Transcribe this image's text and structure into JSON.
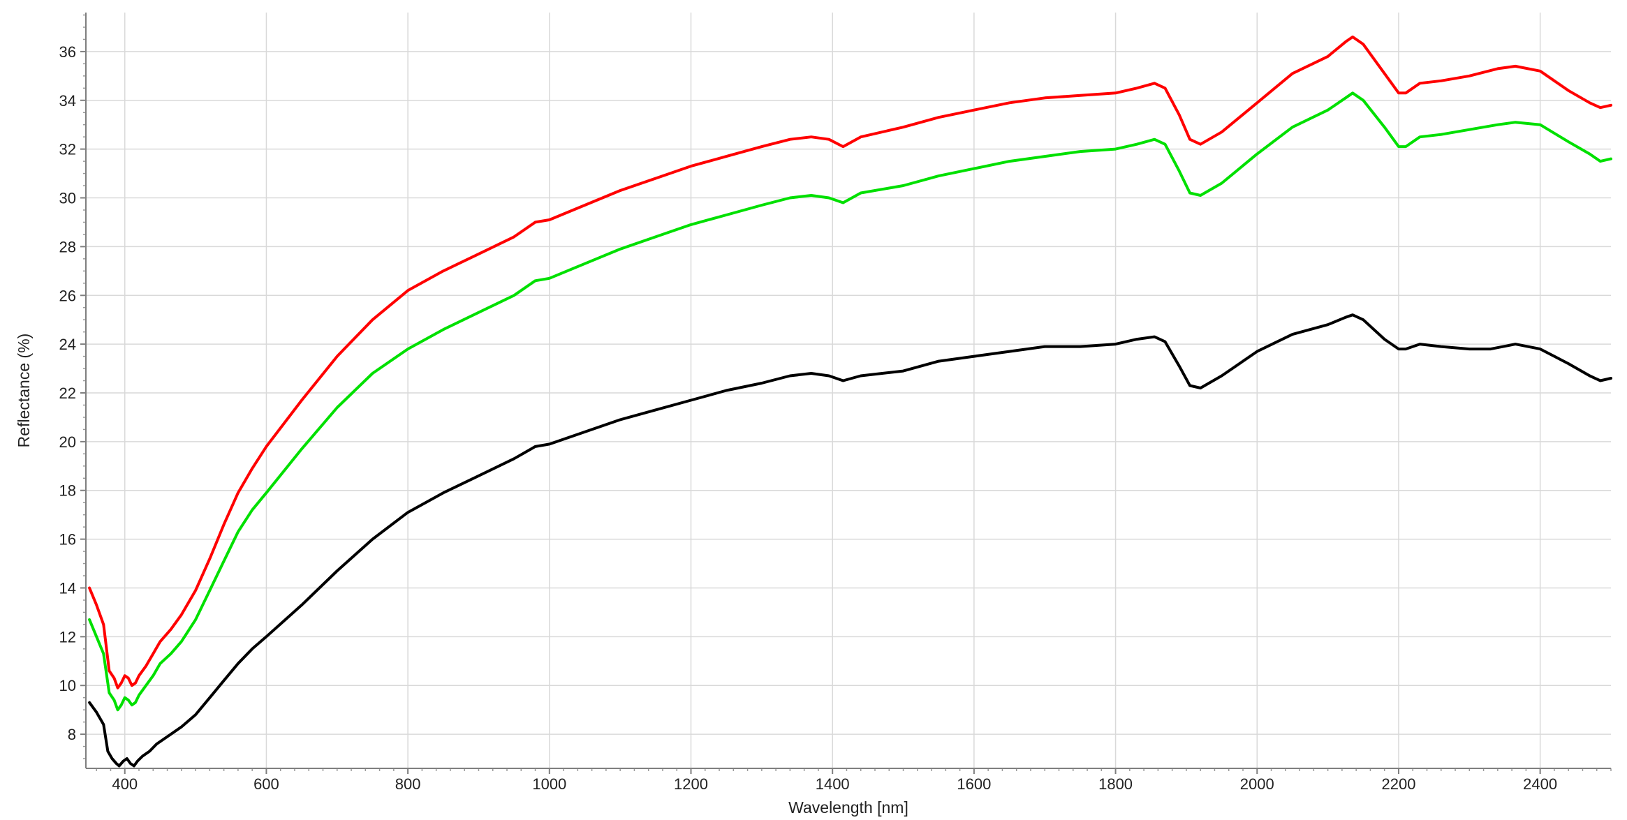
{
  "chart_data": {
    "type": "line",
    "xlabel": "Wavelength [nm]",
    "ylabel": "Reflectance (%)",
    "xlim": [
      345,
      2500
    ],
    "ylim": [
      6.6,
      37.6
    ],
    "x_ticks": [
      400,
      600,
      800,
      1000,
      1200,
      1400,
      1600,
      1800,
      2000,
      2200,
      2400
    ],
    "y_ticks": [
      8,
      10,
      12,
      14,
      16,
      18,
      20,
      22,
      24,
      26,
      28,
      30,
      32,
      34,
      36
    ],
    "grid": true,
    "legend": "none",
    "series": [
      {
        "color": "#ff0000",
        "points": [
          [
            350,
            14.0
          ],
          [
            360,
            13.3
          ],
          [
            370,
            12.5
          ],
          [
            378,
            10.6
          ],
          [
            385,
            10.3
          ],
          [
            390,
            9.9
          ],
          [
            395,
            10.1
          ],
          [
            400,
            10.4
          ],
          [
            405,
            10.3
          ],
          [
            410,
            10.0
          ],
          [
            415,
            10.1
          ],
          [
            420,
            10.4
          ],
          [
            430,
            10.8
          ],
          [
            440,
            11.3
          ],
          [
            450,
            11.8
          ],
          [
            465,
            12.3
          ],
          [
            480,
            12.9
          ],
          [
            500,
            13.9
          ],
          [
            520,
            15.2
          ],
          [
            540,
            16.6
          ],
          [
            560,
            17.9
          ],
          [
            580,
            18.9
          ],
          [
            600,
            19.8
          ],
          [
            650,
            21.7
          ],
          [
            700,
            23.5
          ],
          [
            750,
            25.0
          ],
          [
            800,
            26.2
          ],
          [
            850,
            27.0
          ],
          [
            900,
            27.7
          ],
          [
            950,
            28.4
          ],
          [
            980,
            29.0
          ],
          [
            1000,
            29.1
          ],
          [
            1050,
            29.7
          ],
          [
            1100,
            30.3
          ],
          [
            1150,
            30.8
          ],
          [
            1200,
            31.3
          ],
          [
            1250,
            31.7
          ],
          [
            1300,
            32.1
          ],
          [
            1340,
            32.4
          ],
          [
            1370,
            32.5
          ],
          [
            1395,
            32.4
          ],
          [
            1415,
            32.1
          ],
          [
            1440,
            32.5
          ],
          [
            1500,
            32.9
          ],
          [
            1550,
            33.3
          ],
          [
            1600,
            33.6
          ],
          [
            1650,
            33.9
          ],
          [
            1700,
            34.1
          ],
          [
            1750,
            34.2
          ],
          [
            1800,
            34.3
          ],
          [
            1830,
            34.5
          ],
          [
            1855,
            34.7
          ],
          [
            1870,
            34.5
          ],
          [
            1890,
            33.4
          ],
          [
            1905,
            32.4
          ],
          [
            1920,
            32.2
          ],
          [
            1950,
            32.7
          ],
          [
            2000,
            33.9
          ],
          [
            2050,
            35.1
          ],
          [
            2100,
            35.8
          ],
          [
            2125,
            36.4
          ],
          [
            2135,
            36.6
          ],
          [
            2150,
            36.3
          ],
          [
            2180,
            35.1
          ],
          [
            2200,
            34.3
          ],
          [
            2210,
            34.3
          ],
          [
            2230,
            34.7
          ],
          [
            2260,
            34.8
          ],
          [
            2300,
            35.0
          ],
          [
            2340,
            35.3
          ],
          [
            2365,
            35.4
          ],
          [
            2400,
            35.2
          ],
          [
            2440,
            34.4
          ],
          [
            2470,
            33.9
          ],
          [
            2485,
            33.7
          ],
          [
            2500,
            33.8
          ]
        ]
      },
      {
        "color": "#00e000",
        "points": [
          [
            350,
            12.7
          ],
          [
            360,
            12.0
          ],
          [
            370,
            11.3
          ],
          [
            378,
            9.7
          ],
          [
            385,
            9.4
          ],
          [
            390,
            9.0
          ],
          [
            395,
            9.2
          ],
          [
            400,
            9.5
          ],
          [
            405,
            9.4
          ],
          [
            410,
            9.2
          ],
          [
            415,
            9.3
          ],
          [
            420,
            9.6
          ],
          [
            430,
            10.0
          ],
          [
            440,
            10.4
          ],
          [
            450,
            10.9
          ],
          [
            465,
            11.3
          ],
          [
            480,
            11.8
          ],
          [
            500,
            12.7
          ],
          [
            520,
            13.9
          ],
          [
            540,
            15.1
          ],
          [
            560,
            16.3
          ],
          [
            580,
            17.2
          ],
          [
            600,
            17.9
          ],
          [
            650,
            19.7
          ],
          [
            700,
            21.4
          ],
          [
            750,
            22.8
          ],
          [
            800,
            23.8
          ],
          [
            850,
            24.6
          ],
          [
            900,
            25.3
          ],
          [
            950,
            26.0
          ],
          [
            980,
            26.6
          ],
          [
            1000,
            26.7
          ],
          [
            1050,
            27.3
          ],
          [
            1100,
            27.9
          ],
          [
            1150,
            28.4
          ],
          [
            1200,
            28.9
          ],
          [
            1250,
            29.3
          ],
          [
            1300,
            29.7
          ],
          [
            1340,
            30.0
          ],
          [
            1370,
            30.1
          ],
          [
            1395,
            30.0
          ],
          [
            1415,
            29.8
          ],
          [
            1440,
            30.2
          ],
          [
            1500,
            30.5
          ],
          [
            1550,
            30.9
          ],
          [
            1600,
            31.2
          ],
          [
            1650,
            31.5
          ],
          [
            1700,
            31.7
          ],
          [
            1750,
            31.9
          ],
          [
            1800,
            32.0
          ],
          [
            1830,
            32.2
          ],
          [
            1855,
            32.4
          ],
          [
            1870,
            32.2
          ],
          [
            1890,
            31.1
          ],
          [
            1905,
            30.2
          ],
          [
            1920,
            30.1
          ],
          [
            1950,
            30.6
          ],
          [
            2000,
            31.8
          ],
          [
            2050,
            32.9
          ],
          [
            2100,
            33.6
          ],
          [
            2125,
            34.1
          ],
          [
            2135,
            34.3
          ],
          [
            2150,
            34.0
          ],
          [
            2180,
            32.9
          ],
          [
            2200,
            32.1
          ],
          [
            2210,
            32.1
          ],
          [
            2230,
            32.5
          ],
          [
            2260,
            32.6
          ],
          [
            2300,
            32.8
          ],
          [
            2340,
            33.0
          ],
          [
            2365,
            33.1
          ],
          [
            2400,
            33.0
          ],
          [
            2440,
            32.3
          ],
          [
            2470,
            31.8
          ],
          [
            2485,
            31.5
          ],
          [
            2500,
            31.6
          ]
        ]
      },
      {
        "color": "#000000",
        "points": [
          [
            350,
            9.3
          ],
          [
            360,
            8.9
          ],
          [
            370,
            8.4
          ],
          [
            376,
            7.3
          ],
          [
            382,
            7.0
          ],
          [
            388,
            6.8
          ],
          [
            392,
            6.7
          ],
          [
            398,
            6.9
          ],
          [
            403,
            7.0
          ],
          [
            408,
            6.8
          ],
          [
            413,
            6.7
          ],
          [
            418,
            6.9
          ],
          [
            425,
            7.1
          ],
          [
            435,
            7.3
          ],
          [
            445,
            7.6
          ],
          [
            460,
            7.9
          ],
          [
            480,
            8.3
          ],
          [
            500,
            8.8
          ],
          [
            520,
            9.5
          ],
          [
            540,
            10.2
          ],
          [
            560,
            10.9
          ],
          [
            580,
            11.5
          ],
          [
            600,
            12.0
          ],
          [
            650,
            13.3
          ],
          [
            700,
            14.7
          ],
          [
            750,
            16.0
          ],
          [
            800,
            17.1
          ],
          [
            850,
            17.9
          ],
          [
            900,
            18.6
          ],
          [
            950,
            19.3
          ],
          [
            980,
            19.8
          ],
          [
            1000,
            19.9
          ],
          [
            1050,
            20.4
          ],
          [
            1100,
            20.9
          ],
          [
            1150,
            21.3
          ],
          [
            1200,
            21.7
          ],
          [
            1250,
            22.1
          ],
          [
            1300,
            22.4
          ],
          [
            1340,
            22.7
          ],
          [
            1370,
            22.8
          ],
          [
            1395,
            22.7
          ],
          [
            1415,
            22.5
          ],
          [
            1440,
            22.7
          ],
          [
            1500,
            22.9
          ],
          [
            1550,
            23.3
          ],
          [
            1600,
            23.5
          ],
          [
            1650,
            23.7
          ],
          [
            1700,
            23.9
          ],
          [
            1750,
            23.9
          ],
          [
            1800,
            24.0
          ],
          [
            1830,
            24.2
          ],
          [
            1855,
            24.3
          ],
          [
            1870,
            24.1
          ],
          [
            1890,
            23.1
          ],
          [
            1905,
            22.3
          ],
          [
            1920,
            22.2
          ],
          [
            1950,
            22.7
          ],
          [
            2000,
            23.7
          ],
          [
            2050,
            24.4
          ],
          [
            2100,
            24.8
          ],
          [
            2125,
            25.1
          ],
          [
            2135,
            25.2
          ],
          [
            2150,
            25.0
          ],
          [
            2180,
            24.2
          ],
          [
            2200,
            23.8
          ],
          [
            2210,
            23.8
          ],
          [
            2230,
            24.0
          ],
          [
            2260,
            23.9
          ],
          [
            2300,
            23.8
          ],
          [
            2330,
            23.8
          ],
          [
            2365,
            24.0
          ],
          [
            2400,
            23.8
          ],
          [
            2440,
            23.2
          ],
          [
            2470,
            22.7
          ],
          [
            2485,
            22.5
          ],
          [
            2500,
            22.6
          ]
        ]
      }
    ]
  }
}
